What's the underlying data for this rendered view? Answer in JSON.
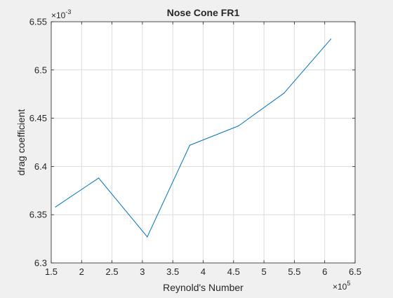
{
  "chart_data": {
    "type": "line",
    "title": "Nose Cone FR1",
    "xlabel": "Reynold's Number",
    "ylabel": "drag coefficient",
    "x_exponent": {
      "base": "×10",
      "power": "5"
    },
    "y_exponent": {
      "base": "×10",
      "power": "-3"
    },
    "xlim": [
      1.5,
      6.5
    ],
    "ylim": [
      6.3,
      6.55
    ],
    "xticks": [
      1.5,
      2,
      2.5,
      3,
      3.5,
      4,
      4.5,
      5,
      5.5,
      6,
      6.5
    ],
    "xtick_labels": [
      "1.5",
      "2",
      "2.5",
      "3",
      "3.5",
      "4",
      "4.5",
      "5",
      "5.5",
      "6",
      "6.5"
    ],
    "yticks": [
      6.3,
      6.35,
      6.4,
      6.45,
      6.5,
      6.55
    ],
    "ytick_labels": [
      "6.3",
      "6.35",
      "6.4",
      "6.45",
      "6.5",
      "6.55"
    ],
    "grid": true,
    "series": [
      {
        "name": "drag coefficient",
        "color": "#0072bd",
        "x": [
          1.57,
          2.28,
          3.08,
          3.78,
          4.58,
          5.33,
          6.1
        ],
        "y": [
          6.358,
          6.388,
          6.327,
          6.422,
          6.442,
          6.476,
          6.532
        ]
      }
    ]
  }
}
